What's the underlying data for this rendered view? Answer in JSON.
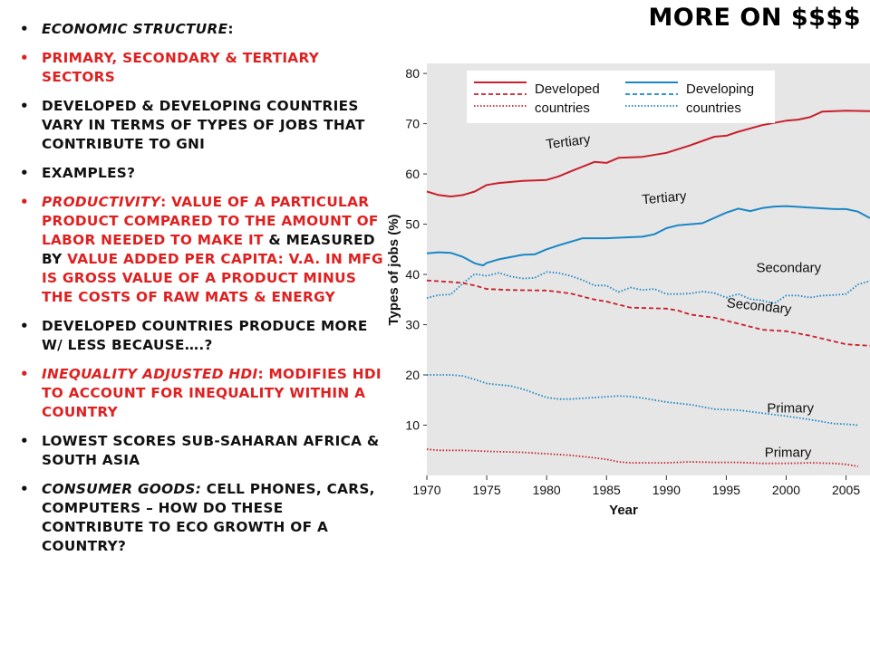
{
  "slide": {
    "title": "MORE ON $$$$",
    "bullets": [
      {
        "term": "ECONOMIC STRUCTURE",
        "sep": ":",
        "text": ""
      },
      {
        "term": "",
        "sep": "",
        "text": "PRIMARY, SECONDARY & TERTIARY SECTORS"
      },
      {
        "term": "",
        "sep": "",
        "text": "DEVELOPED & DEVELOPING COUNTRIES VARY IN TERMS OF TYPES OF JOBS THAT CONTRIBUTE TO GNI"
      },
      {
        "term": "",
        "sep": "",
        "text": "EXAMPLES?"
      },
      {
        "term": "PRODUCTIVITY",
        "sep": ": ",
        "text_red_1": "VALUE OF A PARTICULAR PRODUCT COMPARED TO THE AMOUNT OF LABOR NEEDED TO MAKE IT",
        "text_black": " & MEASURED BY ",
        "text_red_2": "VALUE ADDED PER CAPITA: V.A. IN MFG IS GROSS VALUE OF A PRODUCT MINUS THE COSTS OF RAW MATS & ENERGY"
      },
      {
        "term": "",
        "sep": "",
        "text": "DEVELOPED COUNTRIES PRODUCE MORE W/ LESS BECAUSE….?"
      },
      {
        "term": "INEQUALITY ADJUSTED HDI",
        "sep": ": ",
        "text": "MODIFIES HDI TO ACCOUNT FOR INEQUALITY WITHIN A COUNTRY"
      },
      {
        "term": "",
        "sep": "",
        "text": "LOWEST SCORES SUB-SAHARAN AFRICA & SOUTH ASIA"
      },
      {
        "term": "CONSUMER GOODS:",
        "sep": " ",
        "text": "CELL PHONES, CARS, COMPUTERS – HOW DO THESE CONTRIBUTE TO ECO GROWTH OF A COUNTRY?"
      }
    ],
    "bullet_glyph": "•"
  },
  "chart_data": {
    "type": "line",
    "title": "",
    "xlabel": "Year",
    "ylabel": "Types of jobs (%)",
    "xlim": [
      1970,
      2007
    ],
    "ylim": [
      0,
      82
    ],
    "xticks": [
      1970,
      1975,
      1980,
      1985,
      1990,
      1995,
      2000,
      2005
    ],
    "yticks": [
      10,
      20,
      30,
      40,
      50,
      60,
      70,
      80
    ],
    "grid": false,
    "legend": {
      "placement": "top",
      "entries": [
        {
          "label_line1": "Developed",
          "label_line2": "countries",
          "color": "#c8202c"
        },
        {
          "label_line1": "Developing",
          "label_line2": "countries",
          "color": "#1a86c6"
        }
      ]
    },
    "series": [
      {
        "name": "Developed countries tertiary",
        "group": "developed",
        "sector": "tertiary",
        "style": "solid",
        "color": "#c8202c",
        "x": [
          1970,
          1971,
          1972,
          1973,
          1974,
          1975,
          1976,
          1978,
          1980,
          1981,
          1982,
          1984,
          1985,
          1986,
          1988,
          1990,
          1992,
          1994,
          1995,
          1996,
          1998,
          2000,
          2001,
          2002,
          2003,
          2005,
          2007
        ],
        "y": [
          56.5,
          55.8,
          55.5,
          55.8,
          56.5,
          57.8,
          58.2,
          58.6,
          58.8,
          59.5,
          60.5,
          62.4,
          62.2,
          63.2,
          63.4,
          64.2,
          65.7,
          67.4,
          67.6,
          68.4,
          69.7,
          70.6,
          70.8,
          71.3,
          72.4,
          72.6,
          72.5
        ]
      },
      {
        "name": "Developing countries tertiary",
        "group": "developing",
        "sector": "tertiary",
        "style": "solid",
        "color": "#1a86c6",
        "x": [
          1970,
          1971,
          1972,
          1973,
          1974,
          1974.7,
          1975,
          1976,
          1978,
          1979,
          1980,
          1981,
          1982,
          1983,
          1985,
          1986,
          1988,
          1989,
          1990,
          1991,
          1993,
          1995,
          1996,
          1997,
          1998,
          1999,
          2000,
          2002,
          2004,
          2005,
          2006,
          2007
        ],
        "y": [
          44.2,
          44.4,
          44.3,
          43.5,
          42.2,
          41.8,
          42.3,
          43,
          43.9,
          44,
          45,
          45.8,
          46.5,
          47.2,
          47.2,
          47.3,
          47.5,
          48,
          49.2,
          49.8,
          50.2,
          52.3,
          53.1,
          52.6,
          53.2,
          53.5,
          53.6,
          53.3,
          53,
          53,
          52.5,
          51.2
        ]
      },
      {
        "name": "Developing countries secondary",
        "group": "developing",
        "sector": "secondary",
        "style": "dotted",
        "color": "#1a86c6",
        "x": [
          1970,
          1971,
          1972,
          1973,
          1974,
          1975,
          1976,
          1977,
          1978,
          1979,
          1980,
          1981,
          1982,
          1983,
          1984,
          1985,
          1986,
          1987,
          1988,
          1989,
          1990,
          1991,
          1992,
          1993,
          1994,
          1995,
          1996,
          1997,
          1998,
          1999,
          2000,
          2001,
          2002,
          2003,
          2004,
          2005,
          2006,
          2007
        ],
        "y": [
          35.3,
          35.9,
          36,
          38.2,
          40.1,
          39.7,
          40.3,
          39.6,
          39.2,
          39.3,
          40.5,
          40.3,
          39.7,
          38.9,
          37.8,
          37.8,
          36.5,
          37.4,
          36.9,
          37.1,
          36.1,
          36.1,
          36.2,
          36.6,
          36.3,
          35.4,
          36.1,
          35.1,
          34.8,
          34.2,
          35.8,
          35.8,
          35.4,
          35.8,
          35.9,
          36.1,
          38,
          38.7
        ]
      },
      {
        "name": "Developed countries secondary",
        "group": "developed",
        "sector": "secondary",
        "style": "dashed",
        "color": "#c8202c",
        "x": [
          1970,
          1972,
          1973,
          1974,
          1975,
          1977,
          1980,
          1982,
          1984,
          1985,
          1987,
          1990,
          1991,
          1992,
          1994,
          1996,
          1998,
          2000,
          2002,
          2005,
          2007
        ],
        "y": [
          38.8,
          38.5,
          38.3,
          37.8,
          37.1,
          36.9,
          36.8,
          36.2,
          35,
          34.6,
          33.4,
          33.2,
          32.8,
          32,
          31.4,
          30.2,
          29,
          28.7,
          27.8,
          26.1,
          25.8
        ]
      },
      {
        "name": "Developing countries primary",
        "group": "developing",
        "sector": "primary",
        "style": "dotted",
        "color": "#1a86c6",
        "x": [
          1970,
          1972,
          1973,
          1974,
          1975,
          1977,
          1978,
          1980,
          1981,
          1982,
          1984,
          1986,
          1987,
          1988,
          1990,
          1992,
          1994,
          1996,
          1998,
          2000,
          2002,
          2004,
          2005,
          2006
        ],
        "y": [
          20,
          20,
          19.8,
          19.1,
          18.3,
          17.8,
          17.2,
          15.5,
          15.2,
          15.2,
          15.5,
          15.8,
          15.7,
          15.4,
          14.6,
          14.1,
          13.2,
          13,
          12.4,
          11.8,
          11.1,
          10.3,
          10.2,
          10
        ]
      },
      {
        "name": "Developed countries primary",
        "group": "developed",
        "sector": "primary",
        "style": "dotted",
        "color": "#c8202c",
        "x": [
          1970,
          1971,
          1973,
          1975,
          1978,
          1980,
          1982,
          1984,
          1985,
          1986,
          1987,
          1990,
          1992,
          1994,
          1996,
          1998,
          2000,
          2002,
          2004,
          2005,
          2006
        ],
        "y": [
          5.2,
          5,
          5,
          4.8,
          4.6,
          4.3,
          4,
          3.5,
          3.2,
          2.7,
          2.5,
          2.5,
          2.7,
          2.6,
          2.6,
          2.4,
          2.4,
          2.5,
          2.4,
          2.2,
          1.8
        ]
      }
    ],
    "annotations": [
      {
        "text": "Tertiary",
        "x": 1980,
        "y": 65,
        "rotate": -7
      },
      {
        "text": "Tertiary",
        "x": 1988,
        "y": 54,
        "rotate": -5
      },
      {
        "text": "Secondary",
        "x": 1997.5,
        "y": 40.5,
        "rotate": 0
      },
      {
        "text": "Secondary",
        "x": 1995,
        "y": 33.5,
        "rotate": 6
      },
      {
        "text": "Primary",
        "x": 1998.4,
        "y": 12.5,
        "rotate": 0
      },
      {
        "text": "Primary",
        "x": 1998.2,
        "y": 3.7,
        "rotate": 0
      }
    ]
  }
}
